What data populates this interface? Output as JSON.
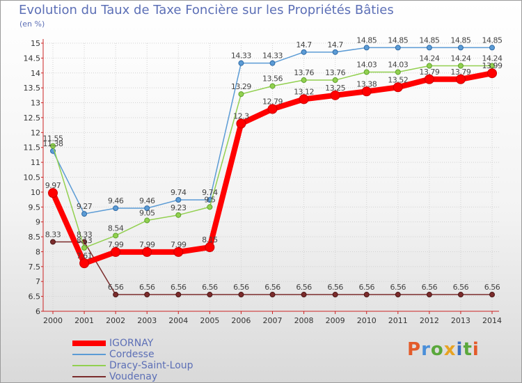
{
  "chart_data": {
    "type": "line",
    "title": "Evolution du Taux de Taxe Foncière sur les Propriétés Bâties",
    "ylabel": "(en %)",
    "xlabel": "",
    "ylim": [
      6,
      15
    ],
    "yticks": [
      "6",
      "6.5",
      "7",
      "7.5",
      "8",
      "8.5",
      "9",
      "9.5",
      "10",
      "10.5",
      "11",
      "11.5",
      "12",
      "12.5",
      "13",
      "13.5",
      "14",
      "14.5",
      "15"
    ],
    "categories": [
      "2000",
      "2001",
      "2002",
      "2003",
      "2004",
      "2005",
      "2006",
      "2007",
      "2008",
      "2009",
      "2010",
      "2011",
      "2012",
      "2013",
      "2014"
    ],
    "series": [
      {
        "name": "IGORNAY",
        "color": "#ff0000",
        "values": [
          9.97,
          7.61,
          7.99,
          7.99,
          7.99,
          8.15,
          12.3,
          12.79,
          13.12,
          13.25,
          13.38,
          13.52,
          13.79,
          13.79,
          13.99
        ],
        "labels": [
          "9.97",
          "7.61",
          "7.99",
          "7.99",
          "7.99",
          "8.15",
          "12.3",
          "12.79",
          "13.12",
          "13.25",
          "13.38",
          "13.52",
          "13.79",
          "13.79",
          "13.99"
        ]
      },
      {
        "name": "Cordesse",
        "color": "#5b9bd5",
        "values": [
          11.38,
          9.27,
          9.46,
          9.46,
          9.74,
          9.74,
          14.33,
          14.33,
          14.7,
          14.7,
          14.85,
          14.85,
          14.85,
          14.85,
          14.85
        ],
        "labels": [
          "11.38",
          "9.27",
          "9.46",
          "9.46",
          "9.74",
          "9.74",
          "14.33",
          "14.33",
          "14.7",
          "14.7",
          "14.85",
          "14.85",
          "14.85",
          "14.85",
          "14.85"
        ]
      },
      {
        "name": "Dracy-Saint-Loup",
        "color": "#92d050",
        "values": [
          11.55,
          8.13,
          8.54,
          9.05,
          9.23,
          9.5,
          13.29,
          13.56,
          13.76,
          13.76,
          14.03,
          14.03,
          14.24,
          14.24,
          14.24
        ],
        "labels": [
          "11.55",
          "8.13",
          "8.54",
          "9.05",
          "9.23",
          "9.5",
          "13.29",
          "13.56",
          "13.76",
          "13.76",
          "14.03",
          "14.03",
          "14.24",
          "14.24",
          "14.24"
        ]
      },
      {
        "name": "Voudenay",
        "color": "#7b2c2c",
        "values": [
          8.33,
          8.33,
          6.56,
          6.56,
          6.56,
          6.56,
          6.56,
          6.56,
          6.56,
          6.56,
          6.56,
          6.56,
          6.56,
          6.56,
          6.56
        ],
        "labels": [
          "8.33",
          "8.33",
          "6.56",
          "6.56",
          "6.56",
          "6.56",
          "6.56",
          "6.56",
          "6.56",
          "6.56",
          "6.56",
          "6.56",
          "6.56",
          "6.56",
          "6.56"
        ]
      }
    ]
  },
  "brand": {
    "logo_text": "Proxiti"
  }
}
